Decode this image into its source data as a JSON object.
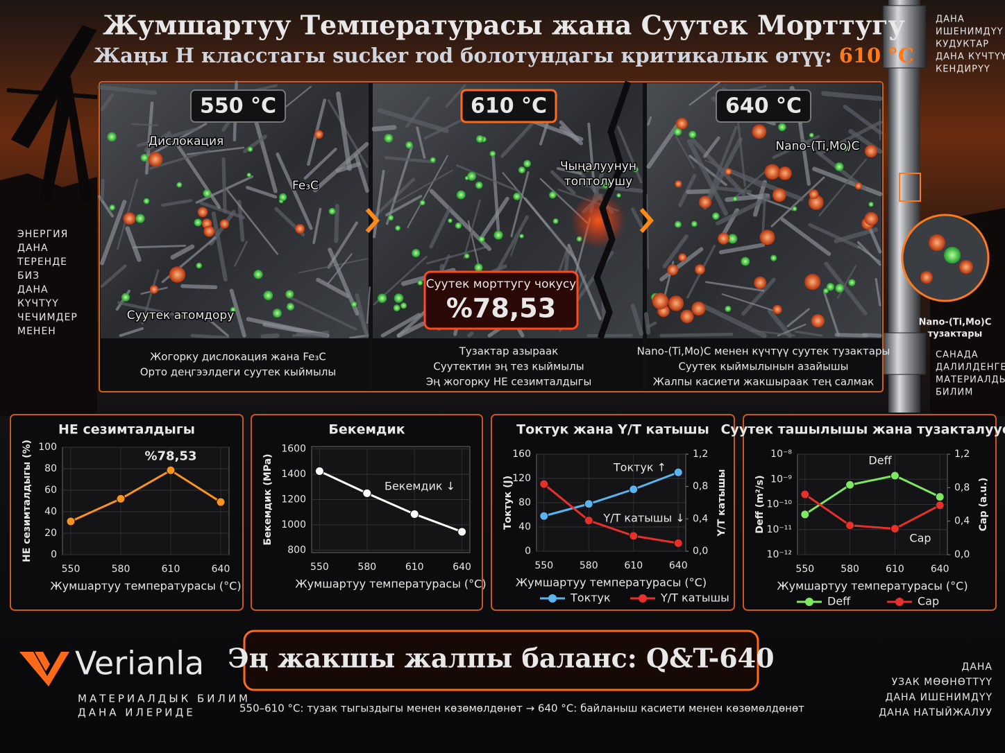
{
  "title": "Жумшартуу Температурасы жана Суутек Морттугу",
  "subtitle": "Жаңы H класстагы sucker rod болотундагы критикалык өтүү:",
  "subtitle_highlight": "610 °C",
  "side_left": [
    "ЭНЕРГИЯ",
    "ДАНА",
    "ТЕРЕНДЕ",
    "БИЗ",
    "ДАНА",
    "КҮЧТҮҮ",
    "ЧЕЧИМДЕР",
    "МЕНЕН"
  ],
  "side_right_top": [
    "ДАНА",
    "ИШЕНИМДҮҮ",
    "КУДУКТАР",
    "ДАНА КҮЧТҮҮ",
    "КЕНДИРҮҮ"
  ],
  "side_right_bottom": [
    "САНАДА",
    "ДАЛИЛДЕНГЕН",
    "МАТЕРИАЛДЫК",
    "БИЛИМ"
  ],
  "panels": [
    {
      "temp": "550 °C",
      "labels": [
        "Дислокация",
        "Fe₃C",
        "Суутек атомдору"
      ],
      "caption": [
        "Жогорку дислокация жана Fe₃C",
        "Орто деңгээлдеги суутек кыймылы"
      ]
    },
    {
      "temp": "610 °C",
      "labels": [
        "Чыңалуунун",
        "топтолушу"
      ],
      "peak_label": "Суутек морттугу чокусу",
      "caption": [
        "Тузактар азыраак",
        "Суутектин эң тез кыймылы",
        "Эң жогорку HE сезимталдыгы"
      ]
    },
    {
      "temp": "640 °C",
      "labels": [
        "Nano-(Ti,Mo)C"
      ],
      "caption": [
        "Nano-(Ti,Mo)C менен күчтүү суутек тузактары",
        "Суутек кыймылынын азайышы",
        "Жалпы касиети жакшыраак тең салмак"
      ]
    }
  ],
  "zoom_label": [
    "Nano-(Ti,Mo)C",
    "тузактары"
  ],
  "chart_data": [
    {
      "type": "line",
      "title": "HE сезимталдыгы",
      "x": [
        550,
        580,
        610,
        640
      ],
      "values": [
        31,
        52,
        78.53,
        49
      ],
      "value_labels": [
        null,
        null,
        "%78,53",
        null
      ],
      "color": "#f7931e",
      "xlim": [
        545,
        645
      ],
      "xticks": [
        550,
        580,
        610,
        640
      ],
      "ylim": [
        0,
        100
      ],
      "yticks": [
        0,
        20,
        40,
        60,
        80,
        100
      ],
      "ylabel": "HE сезимталдыгы (%)",
      "xlabel": "Жумшартуу температурасы (°C)",
      "grid": true
    },
    {
      "type": "line",
      "title": "Бекемдик",
      "x": [
        550,
        580,
        610,
        640
      ],
      "values": [
        1425,
        1250,
        1085,
        945
      ],
      "color": "#ffffff",
      "annotation": "Бекемдик ↓",
      "xlim": [
        545,
        645
      ],
      "xticks": [
        550,
        580,
        610,
        640
      ],
      "ylim": [
        780,
        1620
      ],
      "yticks": [
        800,
        1000,
        1200,
        1400,
        1600
      ],
      "ylabel": "Бекемдик (MPa)",
      "xlabel": "Жумшартуу температурасы (°C)",
      "grid": true
    },
    {
      "type": "line",
      "title": "Токтук жана Y/T катышы",
      "x": [
        550,
        580,
        610,
        640
      ],
      "series": [
        {
          "name": "Токтук",
          "color": "#5ab4f0",
          "values": [
            58,
            78,
            102,
            130
          ],
          "annotation": "Токтук ↑"
        },
        {
          "name": "Y/T катышы",
          "color": "#e8302a",
          "values": [
            0.83,
            0.38,
            0.19,
            0.1
          ],
          "axis": "y2",
          "annotation": "Y/T катышы ↓"
        }
      ],
      "xlim": [
        545,
        645
      ],
      "xticks": [
        550,
        580,
        610,
        640
      ],
      "ylim": [
        0,
        160
      ],
      "yticks": [
        0,
        40,
        80,
        120,
        160
      ],
      "y2lim": [
        0,
        1.2
      ],
      "y2ticks": [
        {
          "value": 0,
          "label": "0,0"
        },
        {
          "value": 0.4,
          "label": "0,4"
        },
        {
          "value": 0.8,
          "label": "0,8"
        },
        {
          "value": 1.2,
          "label": "1,2"
        }
      ],
      "ylabel": "Токтук (J)",
      "y2label": "Y/T катышы",
      "xlabel": "Жумшартуу температурасы (°C)",
      "grid": true,
      "legend": "bottom"
    },
    {
      "type": "line",
      "title": "Суутек ташылышы жана тузакталуусу",
      "x": [
        550,
        580,
        610,
        640
      ],
      "series": [
        {
          "name": "Deff",
          "color": "#7ee860",
          "values": [
            4e-11,
            6e-10,
            1.4e-09,
            2e-10
          ]
        },
        {
          "name": "Cap",
          "color": "#e8302a",
          "values": [
            0.72,
            0.35,
            0.31,
            0.59
          ],
          "axis": "y2"
        }
      ],
      "xlim": [
        545,
        645
      ],
      "xticks": [
        550,
        580,
        610,
        640
      ],
      "yscale": "log",
      "ylim": [
        1e-12,
        1e-08
      ],
      "yticks": [
        {
          "value": 1e-08,
          "label": "10⁻⁸"
        },
        {
          "value": 1e-09,
          "label": "10⁻⁹"
        },
        {
          "value": 1e-10,
          "label": "10⁻¹⁰"
        },
        {
          "value": 1e-11,
          "label": "10⁻¹¹"
        },
        {
          "value": 1e-12,
          "label": "10⁻¹²"
        }
      ],
      "y2lim": [
        0,
        1.2
      ],
      "y2ticks": [
        {
          "value": 0,
          "label": "0,0"
        },
        {
          "value": 0.4,
          "label": "0,4"
        },
        {
          "value": 0.8,
          "label": "0,8"
        },
        {
          "value": 1.2,
          "label": "1,2"
        }
      ],
      "ylabel": "Deff (m²/s)",
      "y2label": "Cap (a.u.)",
      "xlabel": "Жумшартуу температурасы (°C)",
      "grid": true,
      "legend": "bottom"
    }
  ],
  "footer": {
    "brand": "Verianla",
    "tagline": [
      "МАТЕРИАЛДЫК БИЛИМ",
      "ДАНА ИЛЕРИДЕ"
    ],
    "banner": "Эң жакшы жалпы баланс: Q&T-640",
    "note": "550–610 °C: тузак тыгыздыгы менен көзөмөлдөнөт  →  640 °C: байланыш касиети менен көзөмөлдөнөт",
    "right_text": [
      "ДАНА",
      "УЗАК МӨӨНӨТТҮҮ",
      "ДАНА ИШЕНИМДҮҮ",
      "ДАНА НАТЫЙЖАЛУУ"
    ]
  }
}
